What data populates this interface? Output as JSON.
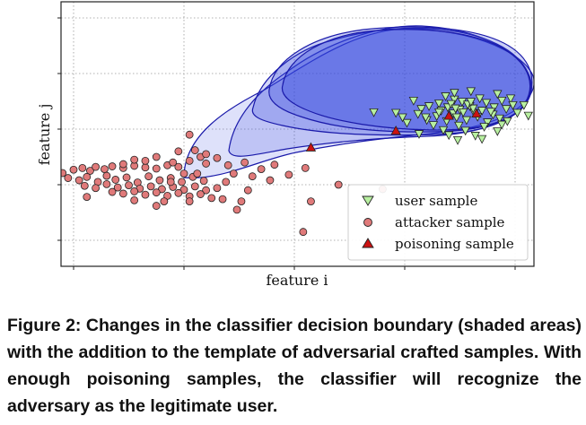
{
  "chart_data": {
    "type": "scatter",
    "title": "",
    "xlabel": "feature i",
    "ylabel": "feature j",
    "grid": true,
    "legend_position": "lower-right",
    "colors": {
      "user_fill": "#b8f0a0",
      "attacker_fill": "#e07a7a",
      "poison_fill": "#cc1111",
      "boundary_fill": "#3344dd",
      "boundary_stroke": "#1a1aaa"
    },
    "series": [
      {
        "name": "user sample",
        "marker": "triangle-down",
        "points": [
          [
            2.45,
            1.53
          ],
          [
            2.68,
            1.55
          ],
          [
            2.96,
            1.55
          ],
          [
            2.08,
            1.51
          ],
          [
            2.31,
            1.46
          ],
          [
            2.52,
            1.49
          ],
          [
            2.74,
            1.47
          ],
          [
            2.88,
            1.51
          ],
          [
            2.22,
            1.41
          ],
          [
            2.39,
            1.39
          ],
          [
            2.59,
            1.41
          ],
          [
            2.81,
            1.39
          ],
          [
            2.98,
            1.43
          ],
          [
            2.15,
            1.36
          ],
          [
            2.33,
            1.33
          ],
          [
            2.5,
            1.35
          ],
          [
            2.7,
            1.33
          ],
          [
            2.92,
            1.36
          ],
          [
            2.44,
            1.28
          ],
          [
            2.63,
            1.29
          ],
          [
            2.8,
            1.26
          ],
          [
            3.02,
            1.29
          ],
          [
            1.92,
            1.29
          ],
          [
            2.12,
            1.27
          ],
          [
            2.29,
            1.23
          ],
          [
            2.47,
            1.21
          ],
          [
            2.66,
            1.22
          ],
          [
            2.86,
            1.19
          ],
          [
            2.2,
            1.16
          ],
          [
            2.38,
            1.14
          ],
          [
            2.56,
            1.16
          ],
          [
            2.75,
            1.12
          ],
          [
            2.93,
            1.14
          ],
          [
            2.02,
            1.11
          ],
          [
            2.26,
            1.07
          ],
          [
            2.49,
            1.06
          ],
          [
            2.72,
            1.04
          ],
          [
            2.35,
            0.98
          ],
          [
            2.55,
            0.97
          ],
          [
            2.84,
            0.96
          ],
          [
            2.13,
            0.91
          ],
          [
            2.4,
            0.89
          ],
          [
            2.64,
            0.88
          ],
          [
            2.48,
            0.8
          ],
          [
            2.7,
            0.82
          ],
          [
            2.6,
            1.68
          ],
          [
            2.37,
            1.59
          ],
          [
            2.84,
            1.63
          ],
          [
            3.08,
            1.43
          ],
          [
            3.12,
            1.24
          ],
          [
            2.42,
            1.45
          ],
          [
            2.57,
            1.44
          ],
          [
            2.46,
            1.37
          ],
          [
            2.62,
            1.37
          ],
          [
            2.53,
            1.3
          ],
          [
            2.31,
            1.3
          ],
          [
            2.78,
            1.31
          ],
          [
            2.19,
            1.21
          ],
          [
            2.6,
            1.49
          ],
          [
            2.45,
            1.65
          ],
          [
            1.98,
            1.21
          ],
          [
            2.88,
            1.08
          ],
          [
            1.72,
            1.3
          ]
        ]
      },
      {
        "name": "attacker sample",
        "marker": "circle",
        "points": [
          [
            -1.85,
            0.0
          ],
          [
            -1.1,
            0.21
          ],
          [
            -1.0,
            0.27
          ],
          [
            -0.92,
            0.3
          ],
          [
            -0.85,
            0.25
          ],
          [
            -0.8,
            0.32
          ],
          [
            -0.72,
            0.28
          ],
          [
            -0.65,
            0.33
          ],
          [
            -0.55,
            0.3
          ],
          [
            -0.45,
            0.34
          ],
          [
            -0.35,
            0.31
          ],
          [
            -0.25,
            0.29
          ],
          [
            -0.15,
            0.35
          ],
          [
            -0.05,
            0.32
          ],
          [
            -1.05,
            0.12
          ],
          [
            -0.95,
            0.08
          ],
          [
            -0.88,
            0.14
          ],
          [
            -0.78,
            0.05
          ],
          [
            -0.7,
            0.16
          ],
          [
            -0.62,
            0.09
          ],
          [
            -0.52,
            0.13
          ],
          [
            -0.42,
            0.04
          ],
          [
            -0.32,
            0.15
          ],
          [
            -0.22,
            0.08
          ],
          [
            -0.12,
            0.12
          ],
          [
            -0.02,
            0.05
          ],
          [
            0.08,
            0.14
          ],
          [
            0.18,
            0.07
          ],
          [
            -0.9,
            -0.02
          ],
          [
            -0.8,
            -0.06
          ],
          [
            -0.7,
            0.01
          ],
          [
            -0.6,
            -0.05
          ],
          [
            -0.5,
            -0.01
          ],
          [
            -0.4,
            -0.07
          ],
          [
            -0.3,
            -0.03
          ],
          [
            -0.2,
            -0.08
          ],
          [
            -0.1,
            -0.04
          ],
          [
            0.0,
            -0.09
          ],
          [
            0.1,
            -0.03
          ],
          [
            0.2,
            -0.1
          ],
          [
            0.3,
            -0.06
          ],
          [
            -0.65,
            -0.13
          ],
          [
            -0.55,
            -0.16
          ],
          [
            -0.45,
            -0.12
          ],
          [
            -0.35,
            -0.18
          ],
          [
            -0.25,
            -0.14
          ],
          [
            -0.15,
            -0.2
          ],
          [
            -0.05,
            -0.15
          ],
          [
            0.05,
            -0.21
          ],
          [
            0.15,
            -0.17
          ],
          [
            0.25,
            -0.24
          ],
          [
            -1.2,
            -0.15
          ],
          [
            -1.28,
            -0.26
          ],
          [
            -0.88,
            -0.22
          ],
          [
            0.35,
            -0.26
          ],
          [
            0.52,
            -0.3
          ],
          [
            0.45,
            0.2
          ],
          [
            0.2,
            0.38
          ],
          [
            0.05,
            0.43
          ],
          [
            -0.1,
            0.4
          ],
          [
            -0.25,
            0.5
          ],
          [
            -0.35,
            0.43
          ],
          [
            -0.45,
            0.45
          ],
          [
            -0.55,
            0.37
          ],
          [
            0.4,
            0.35
          ],
          [
            0.55,
            0.4
          ],
          [
            0.7,
            0.28
          ],
          [
            0.82,
            0.36
          ],
          [
            0.62,
            0.15
          ],
          [
            0.78,
            0.08
          ],
          [
            0.95,
            0.18
          ],
          [
            1.1,
            0.3
          ],
          [
            1.4,
            0.0
          ],
          [
            1.8,
            -0.08
          ],
          [
            0.1,
            0.62
          ],
          [
            0.05,
            0.9
          ],
          [
            0.15,
            0.5
          ],
          [
            0.2,
            0.55
          ],
          [
            -0.05,
            0.6
          ],
          [
            0.3,
            0.48
          ],
          [
            0.38,
            0.05
          ],
          [
            0.58,
            -0.1
          ],
          [
            0.48,
            -0.45
          ],
          [
            1.15,
            -0.3
          ],
          [
            1.08,
            -0.85
          ],
          [
            -0.25,
            -0.38
          ],
          [
            -0.45,
            -0.28
          ],
          [
            -0.18,
            -0.3
          ],
          [
            0.05,
            -0.3
          ],
          [
            0.12,
            0.2
          ],
          [
            0.0,
            0.2
          ],
          [
            -0.12,
            0.05
          ]
        ]
      },
      {
        "name": "poisoning sample",
        "marker": "triangle-up",
        "points": [
          [
            1.15,
            0.67
          ],
          [
            1.92,
            0.97
          ],
          [
            2.4,
            1.24
          ],
          [
            2.65,
            1.28
          ]
        ]
      }
    ]
  },
  "caption": "Figure 2: Changes in the classifier decision boundary (shaded areas) with the addition to the template of adversarial crafted samples. With enough poisoning samples, the classifier will recognize the adversary as the legitimate user."
}
